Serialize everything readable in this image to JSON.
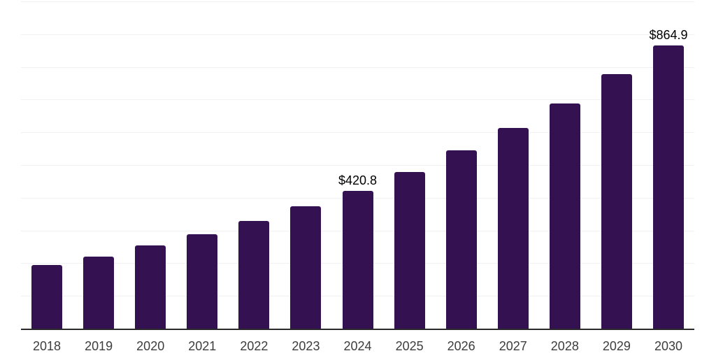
{
  "chart_data": {
    "type": "bar",
    "title": "",
    "xlabel": "",
    "ylabel": "",
    "categories": [
      "2018",
      "2019",
      "2020",
      "2021",
      "2022",
      "2023",
      "2024",
      "2025",
      "2026",
      "2027",
      "2028",
      "2029",
      "2030"
    ],
    "values": [
      194,
      220,
      254,
      288,
      329,
      373,
      420.8,
      478,
      545,
      613,
      689,
      778,
      864.9
    ],
    "annotations": [
      {
        "category": "2024",
        "text": "$420.8"
      },
      {
        "category": "2030",
        "text": "$864.9"
      }
    ],
    "ylim": [
      0,
      1000
    ],
    "gridline_step": 100,
    "grid": "horizontal",
    "legend_position": "none",
    "y_axis_tick_labels_visible": false
  },
  "style": {
    "bar_color": "#341150",
    "gridline_color": "#f1f1f4",
    "axis_line_color": "#2b2b2b",
    "tick_label_color": "#3d3d3d",
    "annotation_color": "#000000",
    "background_color": "#ffffff"
  }
}
